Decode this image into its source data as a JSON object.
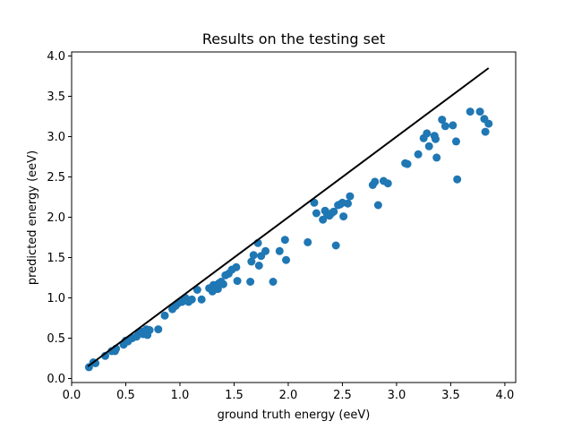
{
  "chart_data": {
    "type": "scatter",
    "title": "Results on the testing set",
    "xlabel": "ground truth energy (eeV)",
    "ylabel": "predicted energy (eeV)",
    "xlim": [
      0.0,
      4.1
    ],
    "ylim": [
      -0.05,
      4.05
    ],
    "xticks": [
      "0.0",
      "0.5",
      "1.0",
      "1.5",
      "2.0",
      "2.5",
      "3.0",
      "3.5",
      "4.0"
    ],
    "yticks": [
      "0.0",
      "0.5",
      "1.0",
      "1.5",
      "2.0",
      "2.5",
      "3.0",
      "3.5",
      "4.0"
    ],
    "grid": false,
    "point_color": "#1f77b4",
    "line_color": "#000000",
    "reference_line": {
      "x": [
        0.15,
        3.85
      ],
      "y": [
        0.15,
        3.85
      ]
    },
    "points": [
      [
        0.16,
        0.14
      ],
      [
        0.2,
        0.2
      ],
      [
        0.22,
        0.19
      ],
      [
        0.31,
        0.28
      ],
      [
        0.37,
        0.34
      ],
      [
        0.4,
        0.34
      ],
      [
        0.41,
        0.37
      ],
      [
        0.48,
        0.42
      ],
      [
        0.5,
        0.47
      ],
      [
        0.52,
        0.46
      ],
      [
        0.56,
        0.5
      ],
      [
        0.6,
        0.52
      ],
      [
        0.62,
        0.56
      ],
      [
        0.65,
        0.58
      ],
      [
        0.66,
        0.55
      ],
      [
        0.69,
        0.61
      ],
      [
        0.7,
        0.54
      ],
      [
        0.72,
        0.6
      ],
      [
        0.8,
        0.61
      ],
      [
        0.86,
        0.78
      ],
      [
        0.93,
        0.86
      ],
      [
        0.96,
        0.9
      ],
      [
        0.98,
        0.93
      ],
      [
        1.02,
        0.95
      ],
      [
        1.04,
        0.97
      ],
      [
        1.05,
        1.0
      ],
      [
        1.08,
        0.95
      ],
      [
        1.11,
        0.98
      ],
      [
        1.16,
        1.1
      ],
      [
        1.2,
        0.98
      ],
      [
        1.27,
        1.12
      ],
      [
        1.3,
        1.08
      ],
      [
        1.31,
        1.16
      ],
      [
        1.33,
        1.14
      ],
      [
        1.35,
        1.11
      ],
      [
        1.36,
        1.18
      ],
      [
        1.38,
        1.2
      ],
      [
        1.4,
        1.17
      ],
      [
        1.42,
        1.28
      ],
      [
        1.45,
        1.3
      ],
      [
        1.48,
        1.35
      ],
      [
        1.52,
        1.38
      ],
      [
        1.53,
        1.21
      ],
      [
        1.65,
        1.2
      ],
      [
        1.66,
        1.45
      ],
      [
        1.68,
        1.53
      ],
      [
        1.72,
        1.68
      ],
      [
        1.73,
        1.4
      ],
      [
        1.75,
        1.52
      ],
      [
        1.79,
        1.58
      ],
      [
        1.86,
        1.2
      ],
      [
        1.92,
        1.58
      ],
      [
        1.97,
        1.72
      ],
      [
        1.98,
        1.47
      ],
      [
        2.18,
        1.69
      ],
      [
        2.24,
        2.18
      ],
      [
        2.26,
        2.05
      ],
      [
        2.32,
        1.97
      ],
      [
        2.34,
        2.08
      ],
      [
        2.36,
        2.03
      ],
      [
        2.38,
        2.02
      ],
      [
        2.4,
        2.05
      ],
      [
        2.42,
        2.07
      ],
      [
        2.44,
        1.65
      ],
      [
        2.46,
        2.15
      ],
      [
        2.48,
        2.16
      ],
      [
        2.5,
        2.18
      ],
      [
        2.51,
        2.01
      ],
      [
        2.55,
        2.17
      ],
      [
        2.57,
        2.26
      ],
      [
        2.78,
        2.4
      ],
      [
        2.8,
        2.44
      ],
      [
        2.83,
        2.15
      ],
      [
        2.88,
        2.45
      ],
      [
        2.92,
        2.42
      ],
      [
        3.08,
        2.67
      ],
      [
        3.1,
        2.66
      ],
      [
        3.2,
        2.78
      ],
      [
        3.25,
        2.98
      ],
      [
        3.28,
        3.04
      ],
      [
        3.3,
        2.88
      ],
      [
        3.35,
        3.01
      ],
      [
        3.36,
        2.97
      ],
      [
        3.37,
        2.74
      ],
      [
        3.42,
        3.21
      ],
      [
        3.45,
        3.13
      ],
      [
        3.52,
        3.14
      ],
      [
        3.55,
        2.94
      ],
      [
        3.56,
        2.47
      ],
      [
        3.68,
        3.31
      ],
      [
        3.77,
        3.31
      ],
      [
        3.81,
        3.22
      ],
      [
        3.82,
        3.06
      ],
      [
        3.85,
        3.16
      ]
    ]
  }
}
